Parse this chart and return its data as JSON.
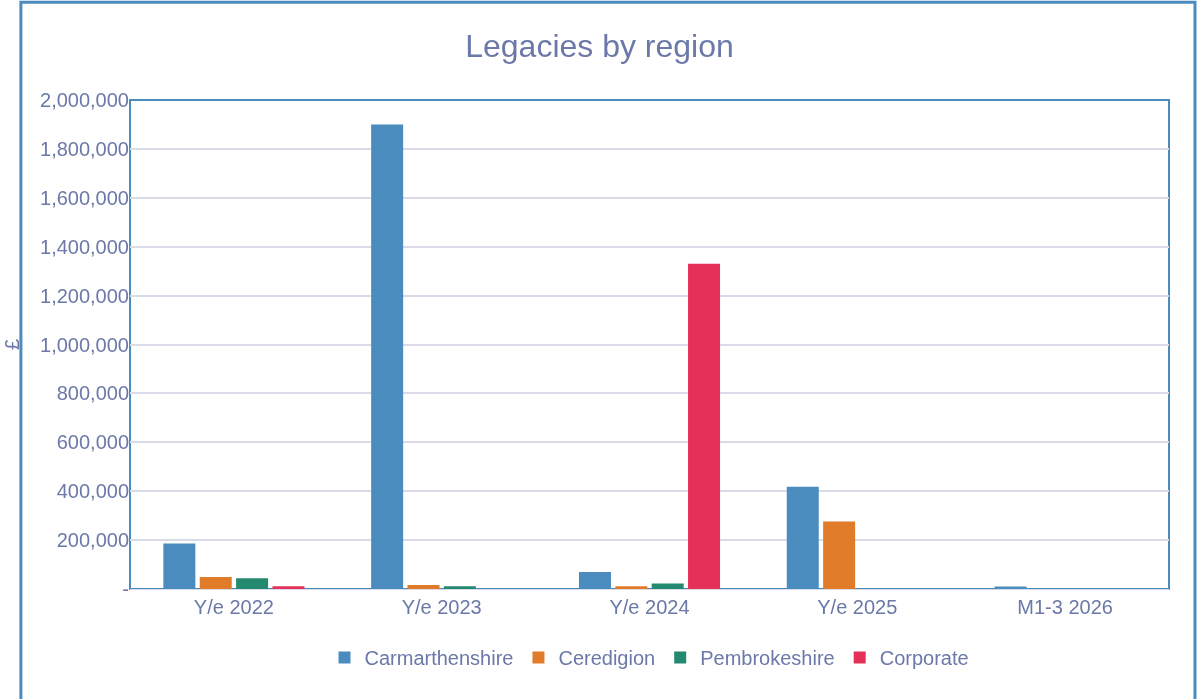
{
  "chart_data": {
    "type": "bar",
    "title": "Legacies by region",
    "ylabel": "£",
    "categories": [
      "Y/e 2022",
      "Y/e 2023",
      "Y/e 2024",
      "Y/e 2025",
      "M1-3 2026"
    ],
    "series": [
      {
        "name": "Carmarthenshire",
        "color": "#4a8cbd",
        "values": [
          186000,
          1900000,
          70000,
          418000,
          10000
        ]
      },
      {
        "name": "Ceredigion",
        "color": "#e07b2a",
        "values": [
          49000,
          16000,
          11000,
          276000,
          0
        ]
      },
      {
        "name": "Pembrokeshire",
        "color": "#248a6f",
        "values": [
          44000,
          11000,
          22000,
          0,
          0
        ]
      },
      {
        "name": "Corporate",
        "color": "#e5305a",
        "values": [
          11000,
          0,
          1330000,
          0,
          0
        ]
      }
    ],
    "ylim": [
      0,
      2000000
    ],
    "yticks": [
      {
        "value": 0,
        "label": "-"
      },
      {
        "value": 200000,
        "label": "200,000"
      },
      {
        "value": 400000,
        "label": "400,000"
      },
      {
        "value": 600000,
        "label": "600,000"
      },
      {
        "value": 800000,
        "label": "800,000"
      },
      {
        "value": 1000000,
        "label": "1,000,000"
      },
      {
        "value": 1200000,
        "label": "1,200,000"
      },
      {
        "value": 1400000,
        "label": "1,400,000"
      },
      {
        "value": 1600000,
        "label": "1,600,000"
      },
      {
        "value": 1800000,
        "label": "1,800,000"
      },
      {
        "value": 2000000,
        "label": "2,000,000"
      }
    ],
    "grid": "y",
    "legend": "bottom"
  }
}
